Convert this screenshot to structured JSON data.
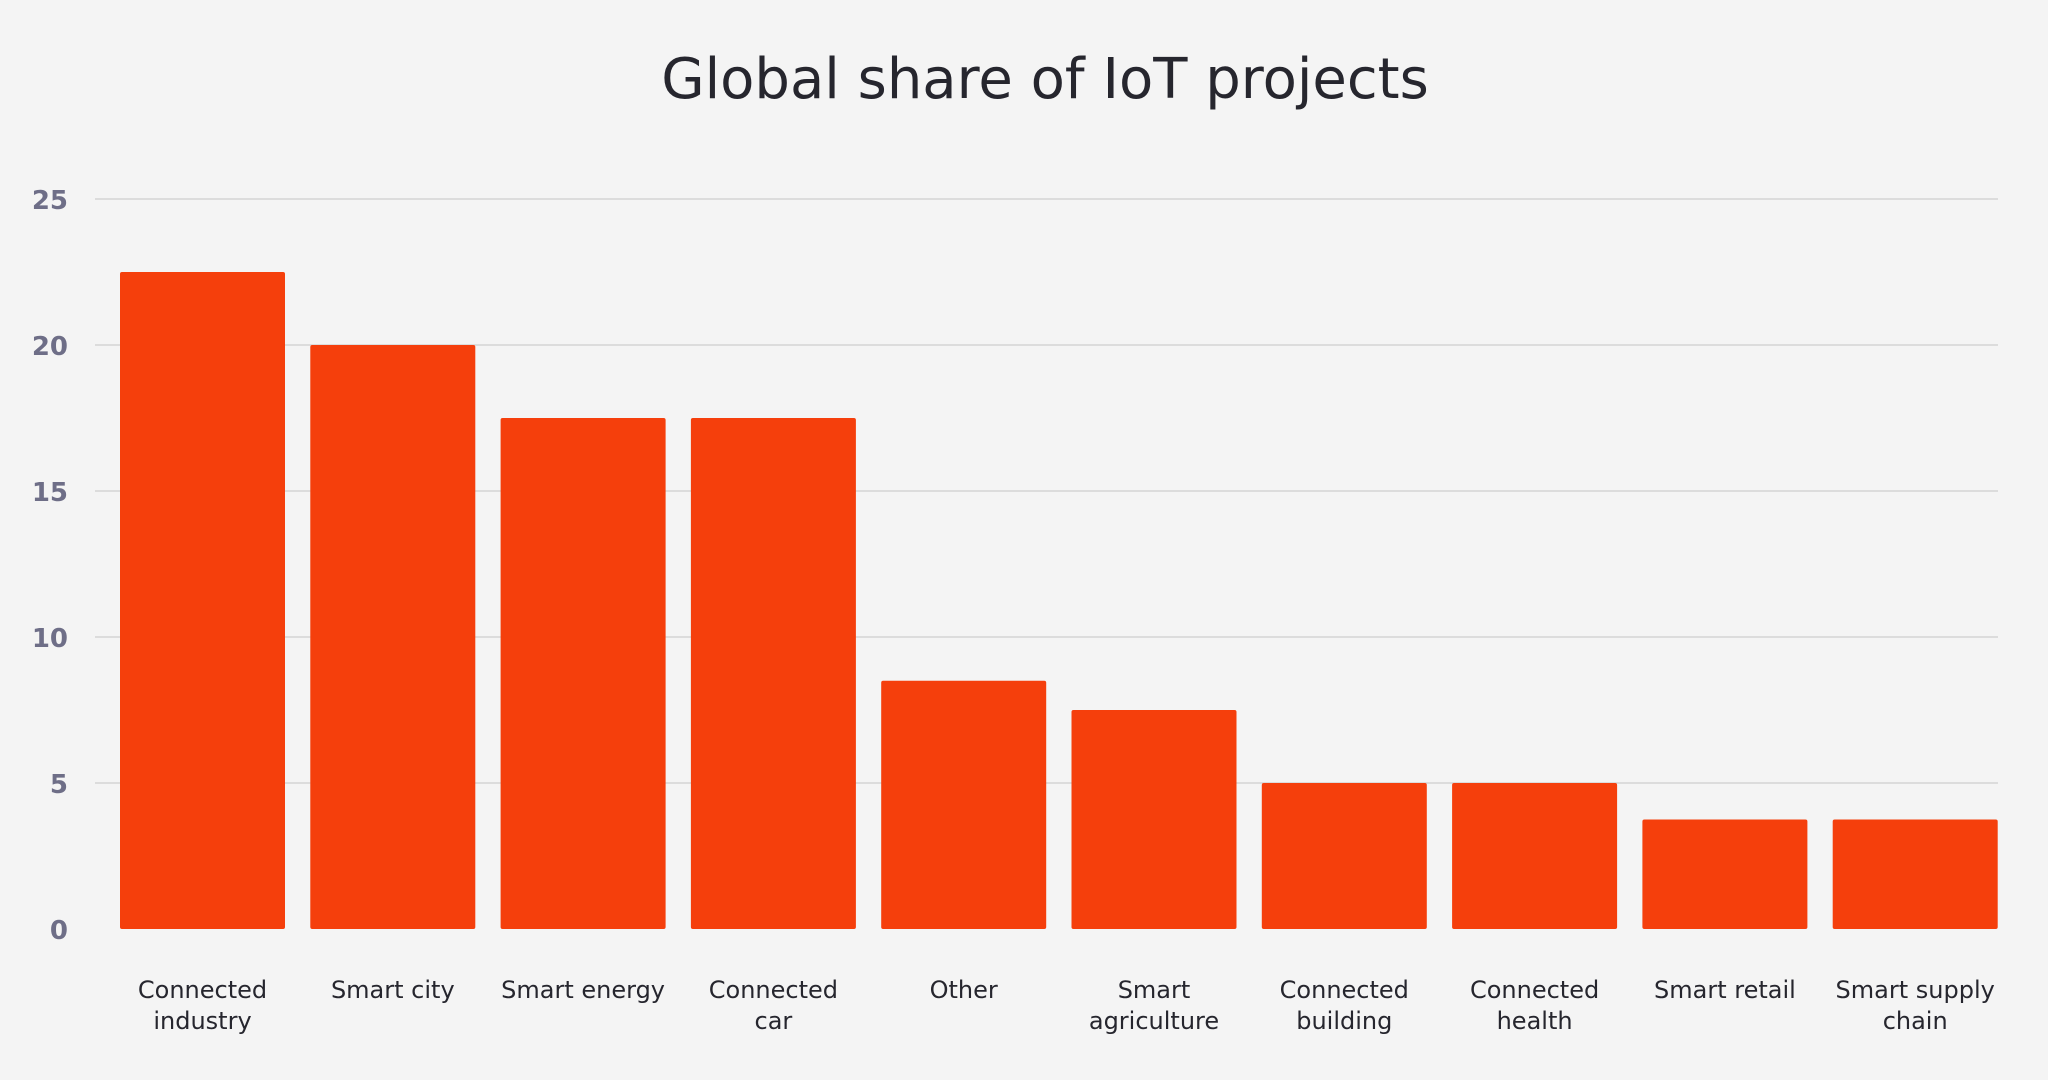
{
  "chart_data": {
    "type": "bar",
    "title": "Global share of IoT projects",
    "xlabel": "",
    "ylabel": "",
    "categories": [
      [
        "Connected",
        "industry"
      ],
      [
        "Smart city"
      ],
      [
        "Smart energy"
      ],
      [
        "Connected",
        "car"
      ],
      [
        "Other"
      ],
      [
        "Smart",
        "agriculture"
      ],
      [
        "Connected",
        "building"
      ],
      [
        "Connected",
        "health"
      ],
      [
        "Smart retail"
      ],
      [
        "Smart supply",
        "chain"
      ]
    ],
    "values": [
      22.5,
      20,
      17.5,
      17.5,
      8.5,
      7.5,
      5,
      5,
      3.75,
      3.75
    ],
    "ylim": [
      0,
      25
    ],
    "yticks": [
      0,
      5,
      10,
      15,
      20,
      25
    ],
    "grid": true,
    "legend": "none",
    "bar_color": "#f53f0c",
    "grid_color": "#d4d4d4"
  }
}
